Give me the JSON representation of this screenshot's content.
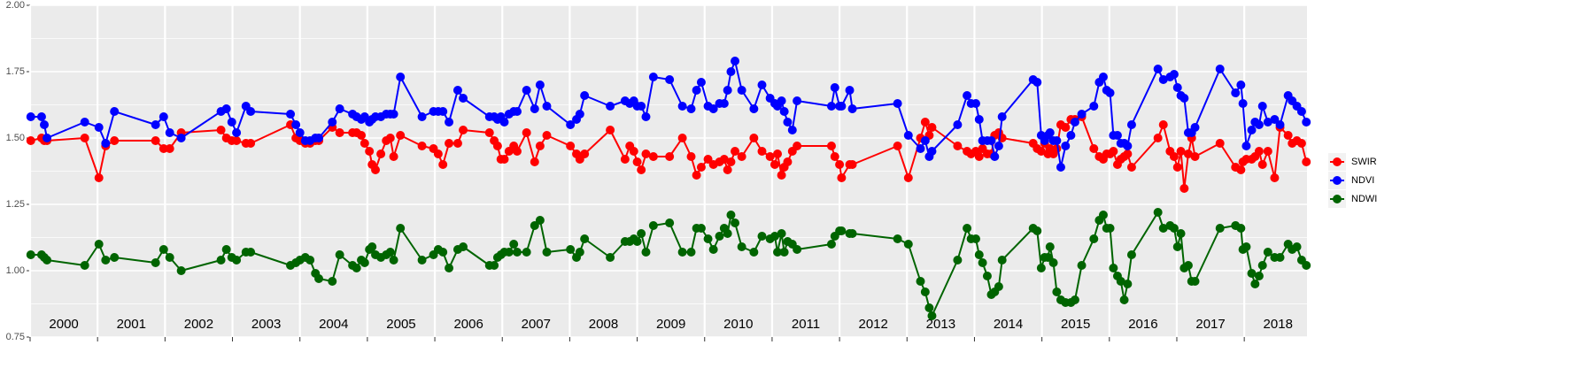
{
  "chart_data": {
    "type": "line",
    "x": [
      2000.01,
      2000.17,
      2000.21,
      2000.25,
      2000.81,
      2001.02,
      2001.12,
      2001.25,
      2001.86,
      2001.98,
      2002.07,
      2002.24,
      2002.83,
      2002.91,
      2002.99,
      2003.06,
      2003.2,
      2003.27,
      2003.86,
      2003.94,
      2004.0,
      2004.08,
      2004.15,
      2004.23,
      2004.28,
      2004.48,
      2004.59,
      2004.78,
      2004.84,
      2004.91,
      2004.96,
      2005.03,
      2005.07,
      2005.12,
      2005.2,
      2005.28,
      2005.34,
      2005.39,
      2005.49,
      2005.81,
      2005.98,
      2006.05,
      2006.12,
      2006.21,
      2006.34,
      2006.42,
      2006.81,
      2006.88,
      2006.93,
      2006.98,
      2007.03,
      2007.1,
      2007.17,
      2007.22,
      2007.36,
      2007.48,
      2007.56,
      2007.66,
      2008.01,
      2008.1,
      2008.15,
      2008.22,
      2008.6,
      2008.82,
      2008.89,
      2008.95,
      2009.0,
      2009.06,
      2009.13,
      2009.24,
      2009.48,
      2009.67,
      2009.8,
      2009.88,
      2009.95,
      2010.05,
      2010.13,
      2010.22,
      2010.29,
      2010.34,
      2010.39,
      2010.45,
      2010.55,
      2010.73,
      2010.85,
      2010.97,
      2011.04,
      2011.08,
      2011.14,
      2011.18,
      2011.23,
      2011.3,
      2011.37,
      2011.88,
      2011.93,
      2012.0,
      2012.03,
      2012.15,
      2012.19,
      2012.86,
      2013.02,
      2013.2,
      2013.27,
      2013.33,
      2013.37,
      2013.75,
      2013.89,
      2013.95,
      2014.02,
      2014.07,
      2014.12,
      2014.19,
      2014.25,
      2014.3,
      2014.36,
      2014.41,
      2014.87,
      2014.93,
      2014.99,
      2015.04,
      2015.09,
      2015.12,
      2015.17,
      2015.22,
      2015.28,
      2015.35,
      2015.43,
      2015.49,
      2015.59,
      2015.77,
      2015.85,
      2015.91,
      2015.96,
      2016.01,
      2016.06,
      2016.12,
      2016.17,
      2016.22,
      2016.27,
      2016.33,
      2016.72,
      2016.8,
      2016.9,
      2016.96,
      2017.01,
      2017.06,
      2017.11,
      2017.17,
      2017.22,
      2017.27,
      2017.64,
      2017.87,
      2017.95,
      2017.98,
      2018.03,
      2018.11,
      2018.16,
      2018.22,
      2018.27,
      2018.35,
      2018.45,
      2018.53,
      2018.65,
      2018.71,
      2018.78,
      2018.85,
      2018.92
    ],
    "xlim": [
      2000,
      2018.93
    ],
    "xticks": [
      {
        "value": 2000.5,
        "label": "2000"
      },
      {
        "value": 2001.5,
        "label": "2001"
      },
      {
        "value": 2002.5,
        "label": "2002"
      },
      {
        "value": 2003.5,
        "label": "2003"
      },
      {
        "value": 2004.5,
        "label": "2004"
      },
      {
        "value": 2005.5,
        "label": "2005"
      },
      {
        "value": 2006.5,
        "label": "2006"
      },
      {
        "value": 2007.5,
        "label": "2007"
      },
      {
        "value": 2008.5,
        "label": "2008"
      },
      {
        "value": 2009.5,
        "label": "2009"
      },
      {
        "value": 2010.5,
        "label": "2010"
      },
      {
        "value": 2011.5,
        "label": "2011"
      },
      {
        "value": 2012.5,
        "label": "2012"
      },
      {
        "value": 2013.5,
        "label": "2013"
      },
      {
        "value": 2014.5,
        "label": "2014"
      },
      {
        "value": 2015.5,
        "label": "2015"
      },
      {
        "value": 2016.5,
        "label": "2016"
      },
      {
        "value": 2017.5,
        "label": "2017"
      },
      {
        "value": 2018.5,
        "label": "2018"
      }
    ],
    "xgrid": [
      2000,
      2001,
      2002,
      2003,
      2004,
      2005,
      2006,
      2007,
      2008,
      2009,
      2010,
      2011,
      2012,
      2013,
      2014,
      2015,
      2016,
      2017,
      2018
    ],
    "ylim": [
      0.75,
      2
    ],
    "yticks": [
      0.75,
      {
        "value": 1,
        "label": "1.00"
      },
      1.25,
      {
        "value": 1.5,
        "label": "1.50"
      },
      1.75,
      {
        "value": 2,
        "label": "2.00"
      }
    ],
    "grid": true,
    "legend": "right",
    "series": [
      {
        "name": "SWIR",
        "color": "#ff0000",
        "values": [
          1.49,
          1.5,
          1.49,
          1.49,
          1.5,
          1.35,
          1.47,
          1.49,
          1.49,
          1.46,
          1.46,
          1.52,
          1.53,
          1.5,
          1.49,
          1.49,
          1.48,
          1.48,
          1.55,
          1.5,
          1.49,
          1.48,
          1.48,
          1.49,
          1.49,
          1.54,
          1.52,
          1.52,
          1.52,
          1.51,
          1.48,
          1.45,
          1.4,
          1.38,
          1.44,
          1.49,
          1.5,
          1.43,
          1.51,
          1.47,
          1.46,
          1.44,
          1.4,
          1.48,
          1.48,
          1.53,
          1.52,
          1.49,
          1.47,
          1.42,
          1.42,
          1.45,
          1.47,
          1.45,
          1.52,
          1.41,
          1.47,
          1.51,
          1.47,
          1.44,
          1.42,
          1.44,
          1.53,
          1.42,
          1.47,
          1.45,
          1.41,
          1.38,
          1.44,
          1.43,
          1.43,
          1.5,
          1.43,
          1.36,
          1.39,
          1.42,
          1.4,
          1.41,
          1.42,
          1.38,
          1.41,
          1.45,
          1.43,
          1.5,
          1.45,
          1.43,
          1.4,
          1.44,
          1.36,
          1.39,
          1.41,
          1.45,
          1.47,
          1.47,
          1.43,
          1.4,
          1.35,
          1.4,
          1.4,
          1.47,
          1.35,
          1.5,
          1.56,
          1.51,
          1.54,
          1.47,
          1.45,
          1.44,
          1.45,
          1.43,
          1.46,
          1.44,
          1.44,
          1.51,
          1.52,
          1.5,
          1.48,
          1.46,
          1.45,
          1.48,
          1.44,
          1.46,
          1.44,
          1.46,
          1.55,
          1.54,
          1.57,
          1.57,
          1.58,
          1.46,
          1.43,
          1.42,
          1.44,
          1.44,
          1.45,
          1.4,
          1.42,
          1.43,
          1.44,
          1.39,
          1.5,
          1.55,
          1.45,
          1.43,
          1.39,
          1.45,
          1.31,
          1.44,
          1.5,
          1.43,
          1.48,
          1.39,
          1.38,
          1.41,
          1.42,
          1.42,
          1.43,
          1.45,
          1.4,
          1.45,
          1.35,
          1.54,
          1.51,
          1.48,
          1.49,
          1.48,
          1.41
        ]
      },
      {
        "name": "NDVI",
        "color": "#0000ff",
        "values": [
          1.58,
          1.58,
          1.55,
          1.5,
          1.56,
          1.54,
          1.48,
          1.6,
          1.55,
          1.58,
          1.52,
          1.5,
          1.6,
          1.61,
          1.56,
          1.52,
          1.62,
          1.6,
          1.59,
          1.55,
          1.52,
          1.49,
          1.49,
          1.5,
          1.5,
          1.56,
          1.61,
          1.59,
          1.58,
          1.57,
          1.58,
          1.56,
          1.57,
          1.58,
          1.58,
          1.59,
          1.59,
          1.59,
          1.73,
          1.58,
          1.6,
          1.6,
          1.6,
          1.56,
          1.68,
          1.65,
          1.58,
          1.58,
          1.57,
          1.58,
          1.56,
          1.59,
          1.6,
          1.6,
          1.68,
          1.61,
          1.7,
          1.62,
          1.55,
          1.57,
          1.59,
          1.66,
          1.62,
          1.64,
          1.63,
          1.64,
          1.62,
          1.62,
          1.58,
          1.73,
          1.72,
          1.62,
          1.61,
          1.68,
          1.71,
          1.62,
          1.61,
          1.63,
          1.63,
          1.68,
          1.75,
          1.79,
          1.68,
          1.61,
          1.7,
          1.65,
          1.63,
          1.62,
          1.64,
          1.6,
          1.56,
          1.53,
          1.64,
          1.62,
          1.69,
          1.62,
          1.62,
          1.68,
          1.61,
          1.63,
          1.51,
          1.46,
          1.49,
          1.43,
          1.45,
          1.55,
          1.66,
          1.63,
          1.63,
          1.57,
          1.49,
          1.49,
          1.49,
          1.43,
          1.47,
          1.58,
          1.72,
          1.71,
          1.51,
          1.49,
          1.51,
          1.52,
          1.49,
          1.49,
          1.39,
          1.47,
          1.51,
          1.56,
          1.59,
          1.62,
          1.71,
          1.73,
          1.68,
          1.67,
          1.51,
          1.51,
          1.48,
          1.48,
          1.47,
          1.55,
          1.76,
          1.72,
          1.73,
          1.74,
          1.69,
          1.66,
          1.65,
          1.52,
          1.52,
          1.54,
          1.76,
          1.67,
          1.7,
          1.63,
          1.47,
          1.53,
          1.56,
          1.55,
          1.62,
          1.56,
          1.57,
          1.55,
          1.66,
          1.64,
          1.62,
          1.6,
          1.56
        ]
      },
      {
        "name": "NDWI",
        "color": "#006400",
        "values": [
          1.06,
          1.06,
          1.05,
          1.04,
          1.02,
          1.1,
          1.04,
          1.05,
          1.03,
          1.08,
          1.05,
          1.0,
          1.04,
          1.08,
          1.05,
          1.04,
          1.07,
          1.07,
          1.02,
          1.03,
          1.04,
          1.05,
          1.04,
          0.99,
          0.97,
          0.96,
          1.06,
          1.02,
          1.01,
          1.04,
          1.03,
          1.08,
          1.09,
          1.06,
          1.05,
          1.06,
          1.07,
          1.04,
          1.16,
          1.04,
          1.06,
          1.08,
          1.07,
          1.01,
          1.08,
          1.09,
          1.02,
          1.02,
          1.05,
          1.06,
          1.07,
          1.07,
          1.1,
          1.07,
          1.07,
          1.17,
          1.19,
          1.07,
          1.08,
          1.05,
          1.07,
          1.12,
          1.05,
          1.11,
          1.11,
          1.12,
          1.11,
          1.14,
          1.07,
          1.17,
          1.18,
          1.07,
          1.07,
          1.16,
          1.16,
          1.12,
          1.08,
          1.13,
          1.16,
          1.14,
          1.21,
          1.18,
          1.09,
          1.07,
          1.13,
          1.12,
          1.13,
          1.07,
          1.14,
          1.07,
          1.11,
          1.1,
          1.08,
          1.1,
          1.13,
          1.15,
          1.15,
          1.14,
          1.14,
          1.12,
          1.1,
          0.96,
          0.92,
          0.86,
          0.83,
          1.04,
          1.16,
          1.12,
          1.12,
          1.06,
          1.03,
          0.98,
          0.91,
          0.92,
          0.94,
          1.04,
          1.16,
          1.15,
          1.01,
          1.05,
          1.05,
          1.09,
          1.03,
          0.92,
          0.89,
          0.88,
          0.88,
          0.89,
          1.02,
          1.12,
          1.19,
          1.21,
          1.16,
          1.16,
          1.01,
          0.98,
          0.96,
          0.89,
          0.95,
          1.06,
          1.22,
          1.16,
          1.17,
          1.16,
          1.09,
          1.14,
          1.01,
          1.02,
          0.96,
          0.96,
          1.16,
          1.17,
          1.16,
          1.08,
          1.09,
          0.99,
          0.95,
          0.98,
          1.02,
          1.07,
          1.05,
          1.05,
          1.1,
          1.08,
          1.09,
          1.04,
          1.02
        ]
      }
    ]
  }
}
